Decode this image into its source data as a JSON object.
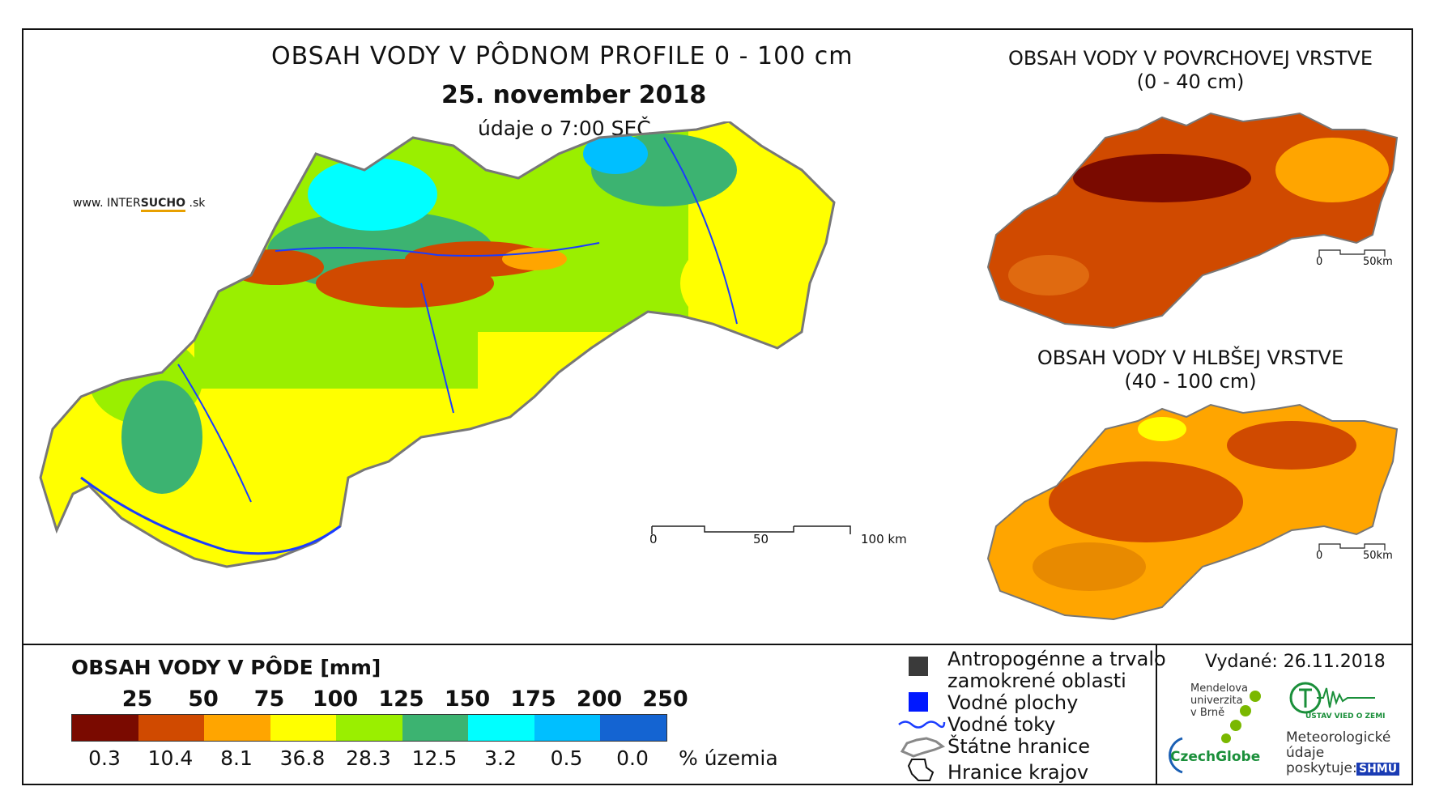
{
  "main_map": {
    "title": "OBSAH VODY V PÔDNOM PROFILE 0 - 100 cm",
    "date": "25. november 2018",
    "time": "údaje o 7:00 SEČ",
    "scale": {
      "labels": [
        "0",
        "50",
        "100 km"
      ]
    }
  },
  "brand": {
    "prefix": "www. INTER",
    "highlight": "SUCHO",
    "suffix": " .sk"
  },
  "inset_top": {
    "title_line1": "OBSAH VODY V POVRCHOVEJ VRSTVE",
    "title_line2": "(0 - 40 cm)",
    "scale": {
      "labels": [
        "0",
        "50km"
      ]
    }
  },
  "inset_bottom": {
    "title_line1": "OBSAH VODY V HLBŠEJ VRSTVE",
    "title_line2": "(40 - 100 cm)",
    "scale": {
      "labels": [
        "0",
        "50km"
      ]
    }
  },
  "legend": {
    "title": "OBSAH VODY V PÔDE [mm]",
    "thresholds": [
      "25",
      "50",
      "75",
      "100",
      "125",
      "150",
      "175",
      "200",
      "250"
    ],
    "classes": [
      {
        "color": "#7a0a00",
        "percent": "0.3"
      },
      {
        "color": "#d04a00",
        "percent": "10.4"
      },
      {
        "color": "#ffa500",
        "percent": "8.1"
      },
      {
        "color": "#ffff00",
        "percent": "36.8"
      },
      {
        "color": "#9aef00",
        "percent": "28.3"
      },
      {
        "color": "#3cb371",
        "percent": "12.5"
      },
      {
        "color": "#00ffff",
        "percent": "3.2"
      },
      {
        "color": "#00bfff",
        "percent": "0.5"
      },
      {
        "color": "#1464d2",
        "percent": "0.0"
      }
    ],
    "percent_unit": "% územia"
  },
  "symbols": {
    "urban": {
      "line1": "Antropogénne a trvalo",
      "line2": "zamokrené oblasti",
      "icon": "dark-square-icon"
    },
    "water_areas": {
      "label": "Vodné plochy",
      "icon": "blue-square-icon"
    },
    "rivers": {
      "label": "Vodné toky",
      "icon": "wavy-line-icon"
    },
    "state_border": {
      "label": "Štátne hranice",
      "icon": "border-outline-icon"
    },
    "region_border": {
      "label": "Hranice krajov",
      "icon": "region-outline-icon"
    }
  },
  "info": {
    "issued": "Vydané: 26.11.2018",
    "mendel": [
      "Mendelova",
      "univerzita",
      "v Brně"
    ],
    "czechglobe": "CzechGlobe",
    "czechglobe_colors": {
      "czech": "#1a8f3a",
      "globe": "#1a5fb4"
    },
    "meteo": [
      "Meteorologické",
      "údaje",
      "poskytuje:"
    ],
    "institute": "ÚSTAV VIED O ZEMI",
    "shmu": "SHMÚ"
  }
}
